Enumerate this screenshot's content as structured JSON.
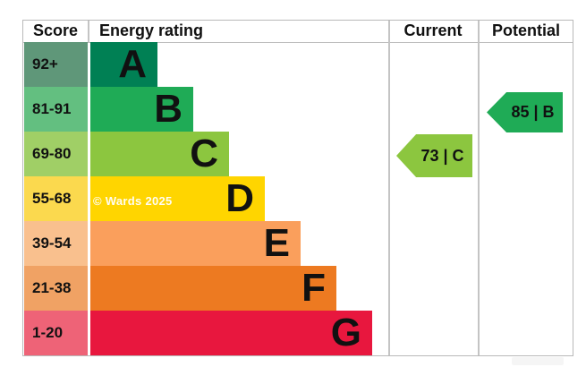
{
  "header": {
    "score": "Score",
    "energy_rating": "Energy rating",
    "current": "Current",
    "potential": "Potential"
  },
  "watermark": "© Wards 2025",
  "chart_data": {
    "type": "epc-energy-rating-bar",
    "title": "",
    "columns": [
      "Score",
      "Energy rating",
      "Current",
      "Potential"
    ],
    "bands": [
      {
        "letter": "A",
        "range": "92+",
        "bar_color": "#008054",
        "range_bg": "#5f9779"
      },
      {
        "letter": "B",
        "range": "81-91",
        "bar_color": "#1fab56",
        "range_bg": "#63bf80"
      },
      {
        "letter": "C",
        "range": "69-80",
        "bar_color": "#8cc63f",
        "range_bg": "#a0cf66"
      },
      {
        "letter": "D",
        "range": "55-68",
        "bar_color": "#ffd500",
        "range_bg": "#fbd94e"
      },
      {
        "letter": "E",
        "range": "39-54",
        "bar_color": "#fa9f5c",
        "range_bg": "#f9c08e"
      },
      {
        "letter": "F",
        "range": "21-38",
        "bar_color": "#ed7a21",
        "range_bg": "#f0a264"
      },
      {
        "letter": "G",
        "range": "1-20",
        "bar_color": "#e8173e",
        "range_bg": "#ee6377"
      }
    ],
    "current": {
      "value": 73,
      "band": "C",
      "label": "73 | C",
      "color": "#8cc63f"
    },
    "potential": {
      "value": 85,
      "band": "B",
      "label": "85 | B",
      "color": "#1fab56"
    },
    "layout_hints": {
      "legend": "none",
      "grid": "off",
      "bars_grow_left_to_right_downward": true
    }
  }
}
